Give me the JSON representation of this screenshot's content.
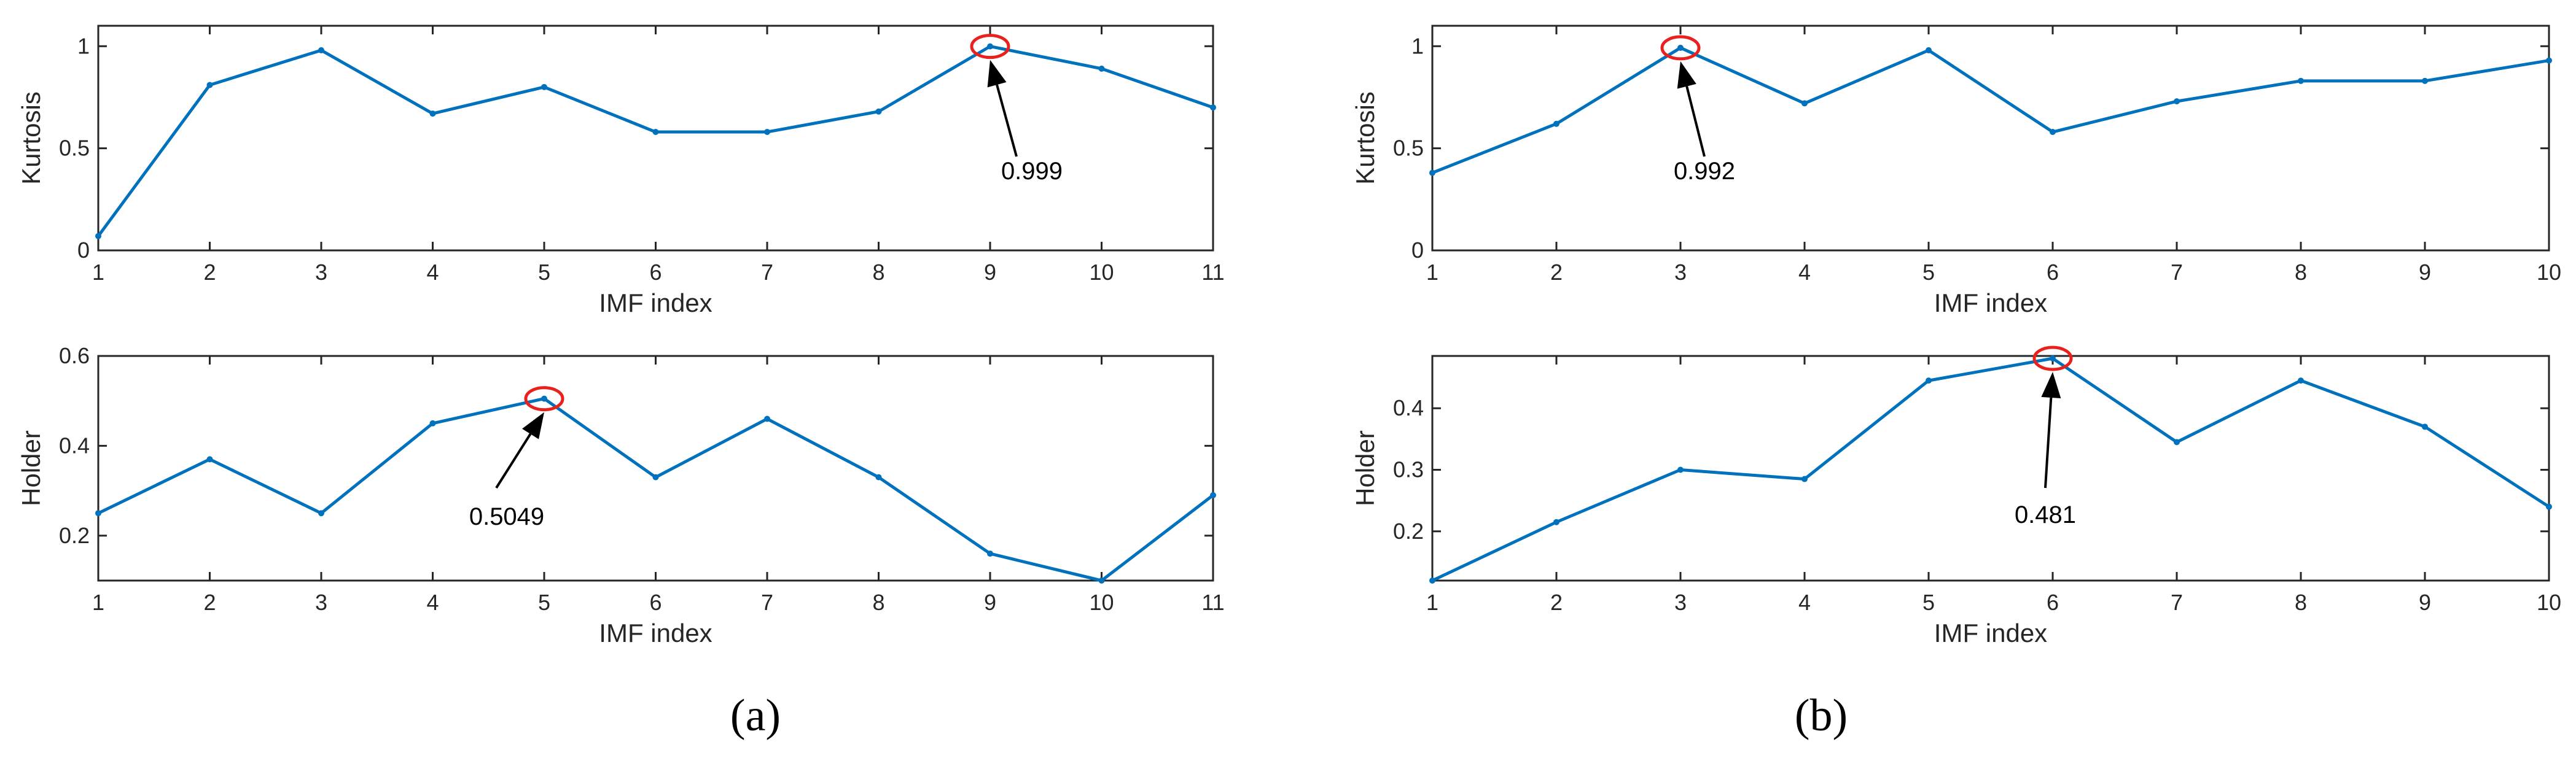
{
  "colors": {
    "series": "#0072BD",
    "highlight": "#e8211d",
    "axis": "#262626",
    "annotation": "#000000"
  },
  "panel_labels": {
    "a": "(a)",
    "b": "(b)"
  },
  "chart_data": [
    {
      "id": "a-kurtosis",
      "type": "line",
      "panel": "(a)",
      "xlabel": "IMF index",
      "ylabel": "Kurtosis",
      "x": [
        1,
        2,
        3,
        4,
        5,
        6,
        7,
        8,
        9,
        10,
        11
      ],
      "xlim": [
        1,
        11
      ],
      "ylim": [
        0,
        1.1
      ],
      "yticks": [
        0,
        0.5,
        1
      ],
      "yticklabels": [
        "0",
        "0.5",
        "1"
      ],
      "grid": false,
      "series": [
        {
          "values": [
            0.07,
            0.81,
            0.98,
            0.67,
            0.8,
            0.58,
            0.58,
            0.68,
            0.999,
            0.89,
            0.7
          ]
        }
      ],
      "annotation": {
        "x": 9,
        "y": 0.999,
        "text": "0.999"
      }
    },
    {
      "id": "a-holder",
      "type": "line",
      "panel": "(a)",
      "xlabel": "IMF index",
      "ylabel": "Holder",
      "x": [
        1,
        2,
        3,
        4,
        5,
        6,
        7,
        8,
        9,
        10,
        11
      ],
      "xlim": [
        1,
        11
      ],
      "ylim": [
        0.1,
        0.6
      ],
      "yticks": [
        0.2,
        0.4,
        0.6
      ],
      "yticklabels": [
        "0.2",
        "0.4",
        "0.6"
      ],
      "grid": false,
      "series": [
        {
          "values": [
            0.25,
            0.37,
            0.25,
            0.45,
            0.5049,
            0.33,
            0.46,
            0.33,
            0.16,
            0.1,
            0.29
          ]
        }
      ],
      "annotation": {
        "x": 5,
        "y": 0.5049,
        "text": "0.5049"
      }
    },
    {
      "id": "b-kurtosis",
      "type": "line",
      "panel": "(b)",
      "xlabel": "IMF index",
      "ylabel": "Kurtosis",
      "x": [
        1,
        2,
        3,
        4,
        5,
        6,
        7,
        8,
        9,
        10
      ],
      "xlim": [
        1,
        10
      ],
      "ylim": [
        0,
        1.1
      ],
      "yticks": [
        0,
        0.5,
        1
      ],
      "yticklabels": [
        "0",
        "0.5",
        "1"
      ],
      "grid": false,
      "series": [
        {
          "values": [
            0.38,
            0.62,
            0.992,
            0.72,
            0.98,
            0.58,
            0.73,
            0.83,
            0.83,
            0.93
          ]
        }
      ],
      "annotation": {
        "x": 3,
        "y": 0.992,
        "text": "0.992"
      }
    },
    {
      "id": "b-holder",
      "type": "line",
      "panel": "(b)",
      "xlabel": "IMF index",
      "ylabel": "Holder",
      "x": [
        1,
        2,
        3,
        4,
        5,
        6,
        7,
        8,
        9,
        10
      ],
      "xlim": [
        1,
        10
      ],
      "ylim": [
        0.12,
        0.485
      ],
      "yticks": [
        0.2,
        0.3,
        0.4
      ],
      "yticklabels": [
        "0.2",
        "0.3",
        "0.4"
      ],
      "grid": false,
      "series": [
        {
          "values": [
            0.12,
            0.215,
            0.3,
            0.285,
            0.445,
            0.481,
            0.345,
            0.445,
            0.37,
            0.24
          ]
        }
      ],
      "annotation": {
        "x": 6,
        "y": 0.481,
        "text": "0.481"
      }
    }
  ]
}
